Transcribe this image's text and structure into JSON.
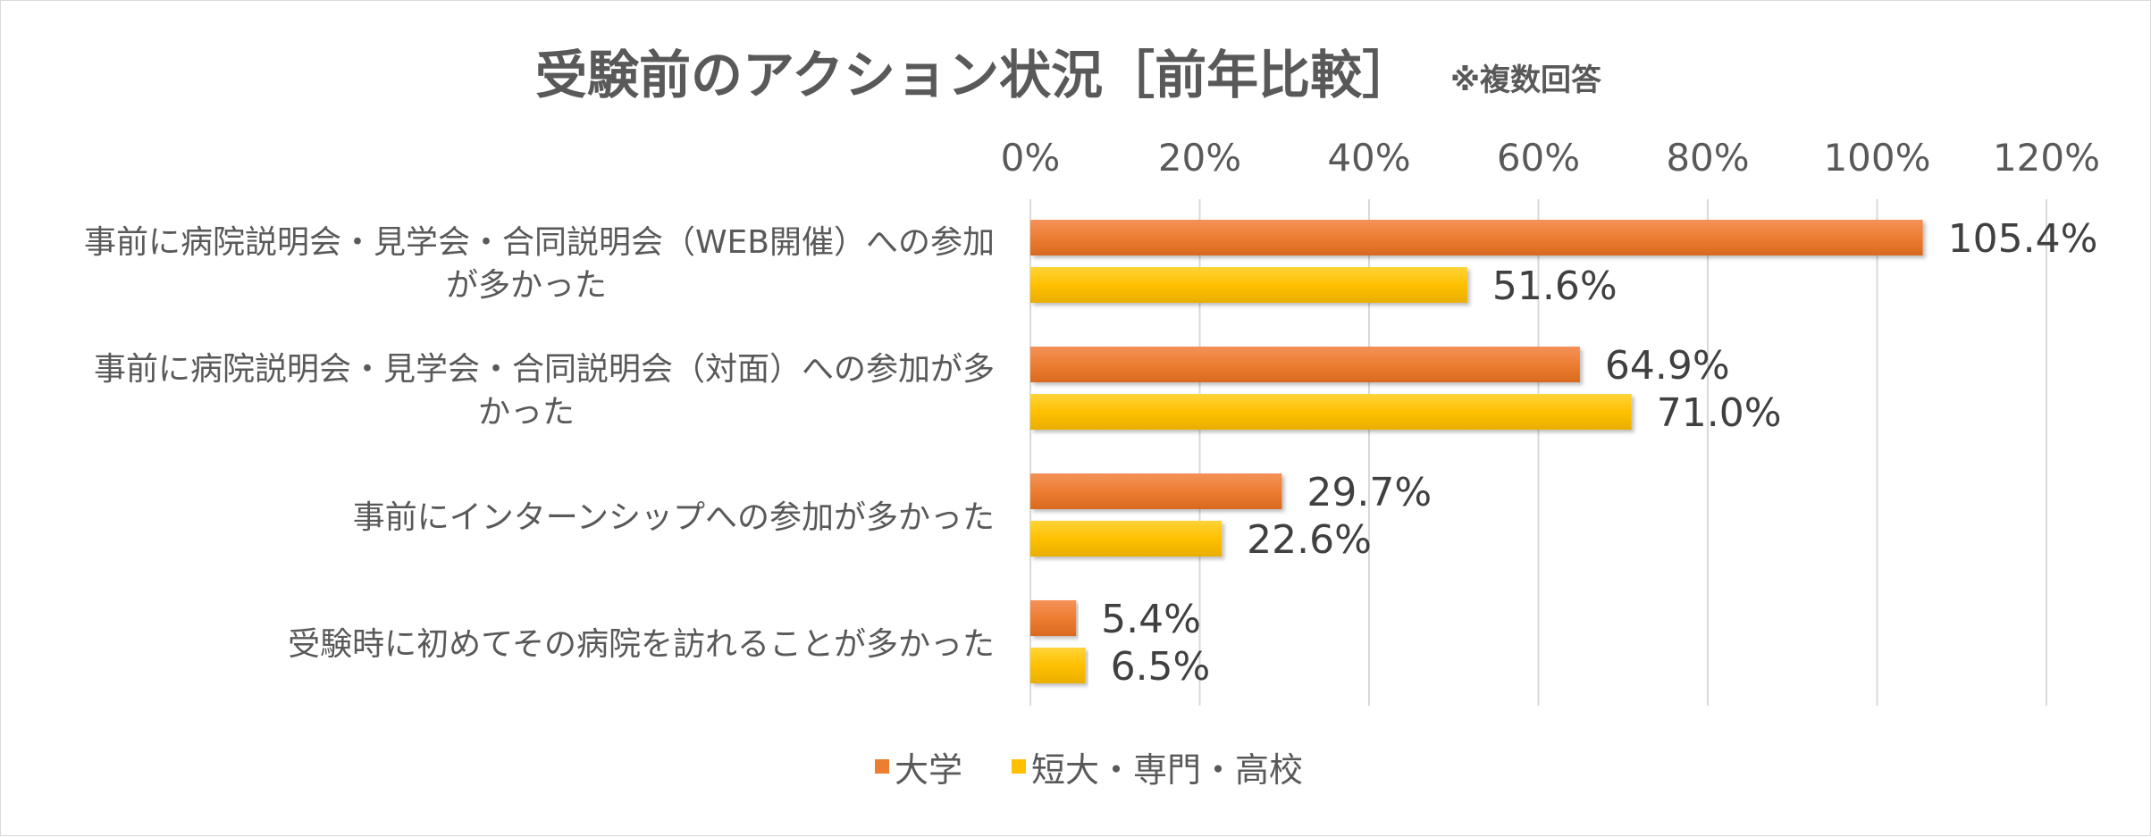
{
  "chart_data": {
    "type": "bar",
    "orientation": "horizontal",
    "title": "受験前のアクション状況［前年比較］",
    "subtitle": "※複数回答",
    "categories": [
      [
        "事前に病院説明会・見学会・合同説明会（WEB開催）への参加",
        "が多かった"
      ],
      [
        "事前に病院説明会・見学会・合同説明会（対面）への参加が多",
        "かった"
      ],
      [
        "事前にインターンシップへの参加が多かった"
      ],
      [
        "受験時に初めてその病院を訪れることが多かった"
      ]
    ],
    "series": [
      {
        "name": "大学",
        "color": "#ED7D31",
        "values": [
          105.4,
          64.9,
          29.7,
          5.4
        ],
        "labels": [
          "105.4%",
          "64.9%",
          "29.7%",
          "5.4%"
        ]
      },
      {
        "name": "短大・専門・高校",
        "color": "#FFC000",
        "values": [
          51.6,
          71.0,
          22.6,
          6.5
        ],
        "labels": [
          "51.6%",
          "71.0%",
          "22.6%",
          "6.5%"
        ]
      }
    ],
    "xlim": [
      0,
      120
    ],
    "xticks": [
      "0%",
      "20%",
      "40%",
      "60%",
      "80%",
      "100%",
      "120%"
    ],
    "grid": true,
    "legend_position": "bottom"
  }
}
